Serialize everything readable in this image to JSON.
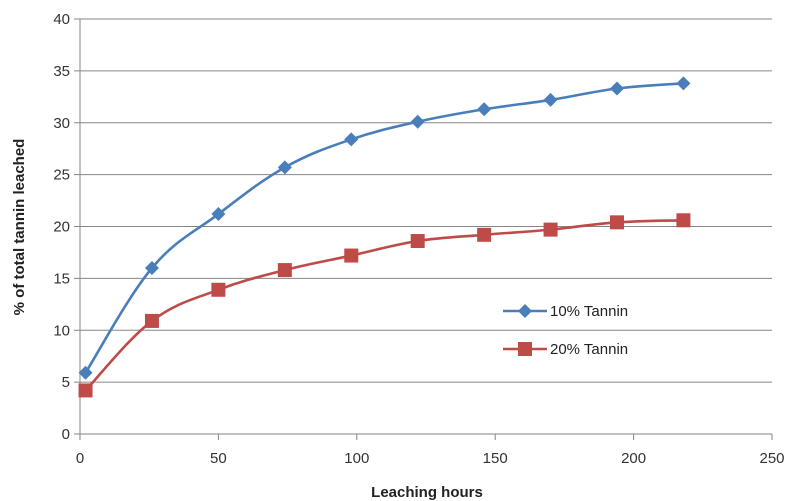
{
  "chart_data": {
    "type": "line",
    "xlabel": "Leaching hours",
    "ylabel": "% of total tannin leached",
    "xlim": [
      0,
      250
    ],
    "ylim": [
      0,
      40
    ],
    "xticks": [
      0,
      50,
      100,
      150,
      200,
      250
    ],
    "yticks": [
      0,
      5,
      10,
      15,
      20,
      25,
      30,
      35,
      40
    ],
    "grid": "horizontal",
    "legend_position": "right-middle",
    "series": [
      {
        "name": "10% Tannin",
        "color": "#4a7ebb",
        "marker": "diamond",
        "x": [
          2,
          26,
          50,
          74,
          98,
          122,
          146,
          170,
          194,
          218
        ],
        "y": [
          5.9,
          16.0,
          21.2,
          25.7,
          28.4,
          30.1,
          31.3,
          32.2,
          33.3,
          33.8
        ]
      },
      {
        "name": "20% Tannin",
        "color": "#be4b48",
        "marker": "square",
        "x": [
          2,
          26,
          50,
          74,
          98,
          122,
          146,
          170,
          194,
          218
        ],
        "y": [
          4.2,
          10.9,
          13.9,
          15.8,
          17.2,
          18.6,
          19.2,
          19.7,
          20.4,
          20.6
        ]
      }
    ]
  }
}
